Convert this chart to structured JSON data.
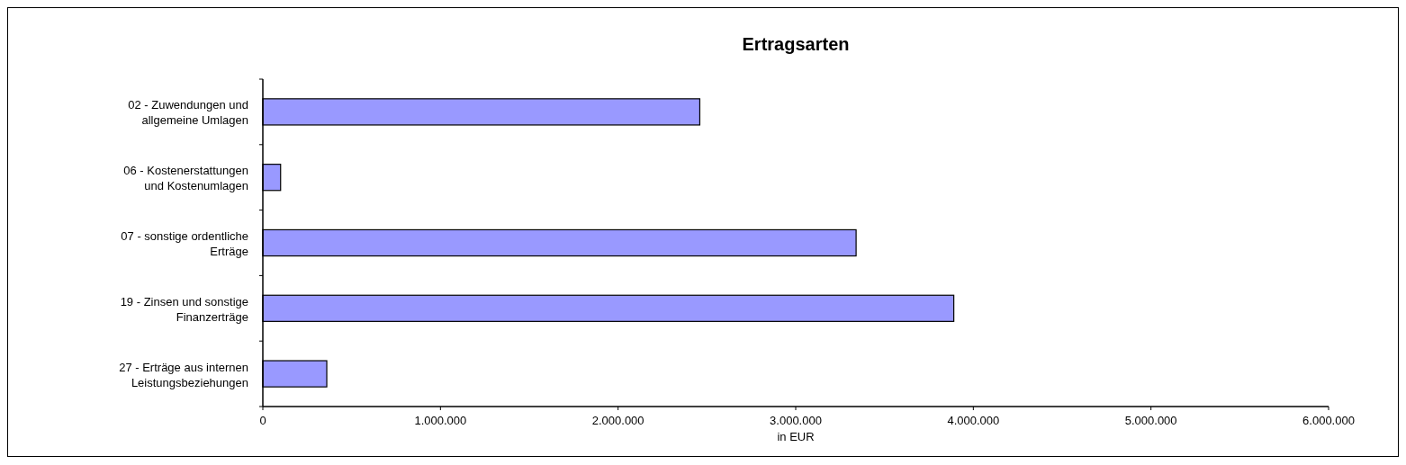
{
  "chart_data": {
    "type": "bar",
    "orientation": "horizontal",
    "title": "Ertragsarten",
    "xlabel": "in EUR",
    "categories": [
      "02 - Zuwendungen und allgemeine Umlagen",
      "06 - Kostenerstattungen und Kostenumlagen",
      "07 - sonstige ordentliche Erträge",
      "19 - Zinsen und sonstige Finanzerträge",
      "27 - Erträge aus internen Leistungsbeziehungen"
    ],
    "values": [
      2460000,
      100000,
      3340000,
      3890000,
      360000
    ],
    "color": "#9999ff",
    "xlim": [
      0,
      6000000
    ],
    "xticks": [
      {
        "value": 0,
        "label": "0"
      },
      {
        "value": 1000000,
        "label": "1.000.000"
      },
      {
        "value": 2000000,
        "label": "2.000.000"
      },
      {
        "value": 3000000,
        "label": "3.000.000"
      },
      {
        "value": 4000000,
        "label": "4.000.000"
      },
      {
        "value": 5000000,
        "label": "5.000.000"
      },
      {
        "value": 6000000,
        "label": "6.000.000"
      }
    ],
    "grid": false
  }
}
